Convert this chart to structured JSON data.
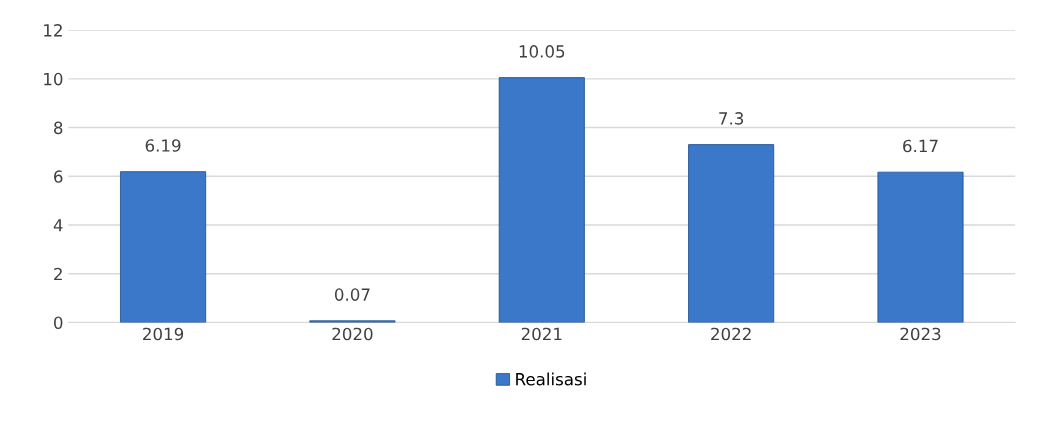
{
  "chart_data": {
    "type": "bar",
    "categories": [
      "2019",
      "2020",
      "2021",
      "2022",
      "2023"
    ],
    "series": [
      {
        "name": "Realisasi",
        "color": "#3b78c9",
        "values": [
          6.19,
          0.07,
          10.05,
          7.3,
          6.17
        ]
      }
    ],
    "ylim": [
      0,
      12
    ],
    "yticks": [
      0,
      2,
      4,
      6,
      8,
      10,
      12
    ],
    "grid": "y",
    "legend": "bottom",
    "data_labels": true
  }
}
